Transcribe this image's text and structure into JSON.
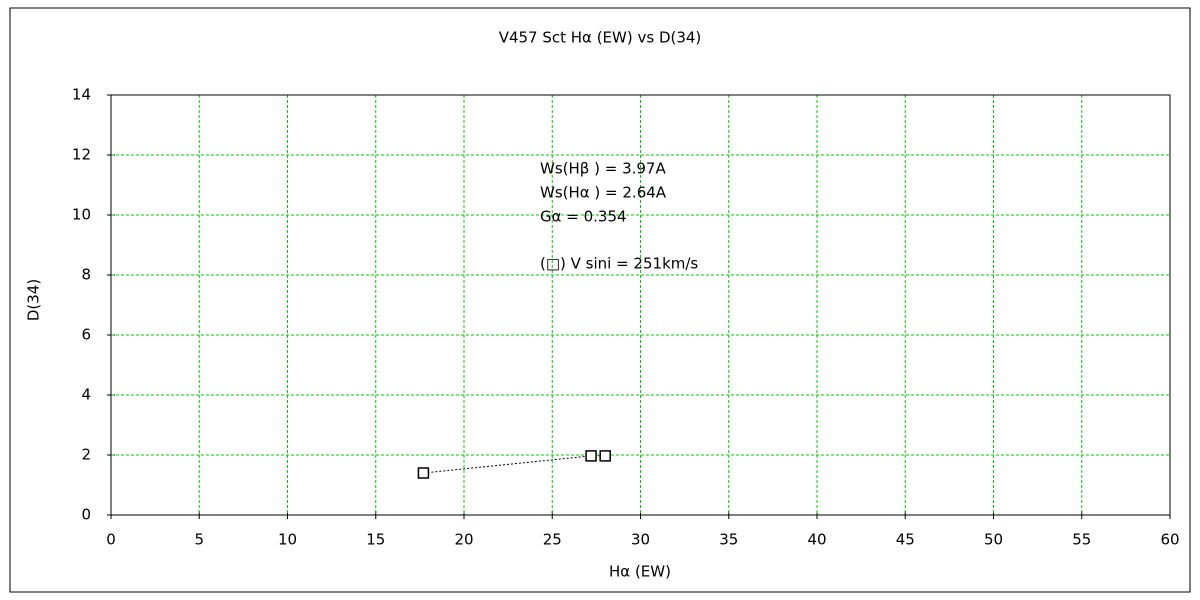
{
  "chart_data": {
    "type": "scatter",
    "title": "V457 Sct    Hα (EW) vs D(34)",
    "x_label": "Hα (EW)",
    "y_label": "D(34)",
    "x": [
      17.7,
      27.2,
      28.0
    ],
    "values": [
      1.4,
      1.97,
      1.97
    ],
    "color": "#000000",
    "connect": true,
    "marker": "square",
    "xlim": [
      0,
      60
    ],
    "xticks": [
      0,
      5,
      10,
      15,
      20,
      25,
      30,
      35,
      40,
      45,
      50,
      55,
      60
    ],
    "ylim": [
      0,
      14
    ],
    "yticks": [
      0,
      2,
      4,
      6,
      8,
      10,
      12,
      14
    ],
    "grid": true,
    "grid_color": "#00cc00",
    "annotations": [
      "Ws(Hβ ) = 3.97A",
      "Ws(Hα ) = 2.64A",
      "Gα = 0.354",
      "(□) V sini = 251km/s"
    ]
  }
}
